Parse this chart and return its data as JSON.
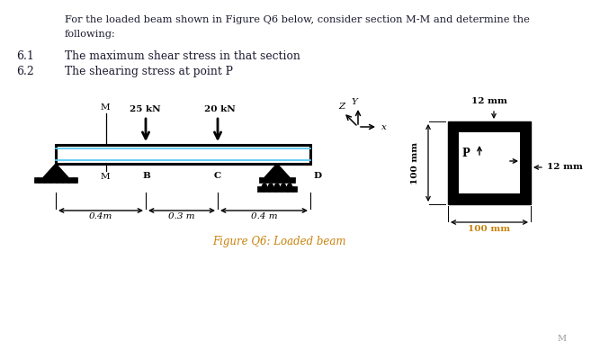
{
  "bg_color": "#ffffff",
  "blue_line_color": "#5bc8f5",
  "load1_label": "25 kN",
  "load2_label": "20 kN",
  "dist_labels": [
    "0.4m",
    "0.3 m",
    "0.4 m"
  ],
  "dim_12mm_top": "12 mm",
  "dim_12mm_right": "12 mm",
  "dim_100mm_left": "100 mm",
  "dim_100mm_bottom": "100 mm",
  "point_P": "P",
  "caption": "Figure Q6: Loaded beam",
  "caption_color": "#c8820a",
  "dim_color": "#c8820a",
  "text_color": "#1a1a2e",
  "label_color": "#1a1a2e"
}
